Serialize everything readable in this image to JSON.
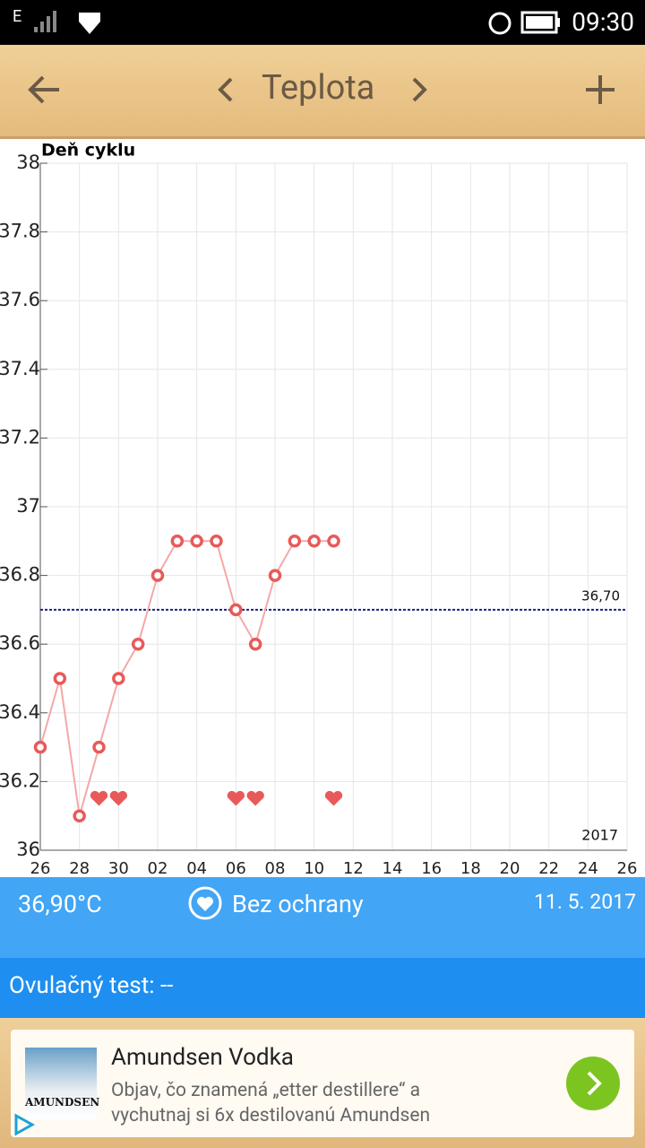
{
  "status_bar": {
    "network": "E",
    "time": "09:30"
  },
  "header": {
    "title": "Teplota"
  },
  "chart_data": {
    "type": "line",
    "y_title": "Deň cyklu",
    "x": [
      0,
      1,
      2,
      3,
      4,
      5,
      6,
      7,
      8,
      9,
      10,
      11,
      12,
      13,
      14,
      15
    ],
    "values": [
      36.3,
      36.5,
      36.1,
      36.3,
      36.5,
      36.6,
      36.8,
      36.9,
      36.9,
      36.9,
      36.7,
      36.6,
      36.8,
      36.9,
      36.9,
      36.9
    ],
    "color": "#e85a5a",
    "line_color": "#f4a8a8",
    "xlim": [
      0,
      30
    ],
    "xticks": [
      {
        "value": 0,
        "label": "26"
      },
      {
        "value": 2,
        "label": "28"
      },
      {
        "value": 4,
        "label": "30"
      },
      {
        "value": 6,
        "label": "02"
      },
      {
        "value": 8,
        "label": "04"
      },
      {
        "value": 10,
        "label": "06"
      },
      {
        "value": 12,
        "label": "08"
      },
      {
        "value": 14,
        "label": "10"
      },
      {
        "value": 16,
        "label": "12"
      },
      {
        "value": 18,
        "label": "14"
      },
      {
        "value": 20,
        "label": "16"
      },
      {
        "value": 22,
        "label": "18"
      },
      {
        "value": 24,
        "label": "20"
      },
      {
        "value": 26,
        "label": "22"
      },
      {
        "value": 28,
        "label": "24"
      },
      {
        "value": 30,
        "label": "26"
      }
    ],
    "ylim": [
      36,
      38
    ],
    "yticks": [
      36,
      36.2,
      36.4,
      36.6,
      36.8,
      37,
      37.2,
      37.4,
      37.6,
      37.8,
      38
    ],
    "grid": true,
    "hearts_x": [
      3,
      4,
      10,
      11,
      15
    ],
    "reference_line": {
      "value": 36.7,
      "label": "36,70",
      "color": "#1a237e"
    },
    "annotation": "2017"
  },
  "summary": {
    "temperature": "36,90°C",
    "protection": "Bez ochrany",
    "date": "11. 5. 2017",
    "ovulation_test": "Ovulačný test: --"
  },
  "ad": {
    "logo_text": "AMUNDSEN",
    "title": "Amundsen Vodka",
    "text_line1": "Objav, čo znamená „etter destillere“ a",
    "text_line2": "vychutnaj si 6x destilovanú Amundsen"
  }
}
